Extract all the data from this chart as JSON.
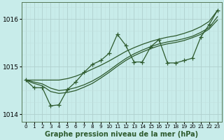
{
  "x": [
    0,
    1,
    2,
    3,
    4,
    5,
    6,
    7,
    8,
    9,
    10,
    11,
    12,
    13,
    14,
    15,
    16,
    17,
    18,
    19,
    20,
    21,
    22,
    23
  ],
  "y_jagged": [
    1014.72,
    1014.56,
    1014.56,
    1014.18,
    1014.2,
    1014.52,
    1014.68,
    1014.88,
    1015.05,
    1015.13,
    1015.28,
    1015.68,
    1015.45,
    1015.1,
    1015.1,
    1015.42,
    1015.57,
    1015.08,
    1015.08,
    1015.13,
    1015.18,
    1015.62,
    1015.88,
    1016.18
  ],
  "y_trend_high": [
    1014.72,
    1014.72,
    1014.72,
    1014.72,
    1014.72,
    1014.75,
    1014.8,
    1014.87,
    1014.95,
    1015.03,
    1015.12,
    1015.22,
    1015.32,
    1015.4,
    1015.47,
    1015.53,
    1015.58,
    1015.62,
    1015.65,
    1015.7,
    1015.76,
    1015.84,
    1015.95,
    1016.18
  ],
  "y_trend_mid": [
    1014.72,
    1014.68,
    1014.64,
    1014.55,
    1014.5,
    1014.52,
    1014.56,
    1014.62,
    1014.7,
    1014.8,
    1014.92,
    1015.05,
    1015.17,
    1015.27,
    1015.35,
    1015.42,
    1015.48,
    1015.52,
    1015.55,
    1015.59,
    1015.64,
    1015.72,
    1015.82,
    1016.05
  ],
  "y_trend_low": [
    1014.72,
    1014.65,
    1014.6,
    1014.48,
    1014.44,
    1014.46,
    1014.5,
    1014.57,
    1014.65,
    1014.76,
    1014.88,
    1015.01,
    1015.13,
    1015.23,
    1015.31,
    1015.38,
    1015.44,
    1015.48,
    1015.51,
    1015.55,
    1015.61,
    1015.68,
    1015.79,
    1015.98
  ],
  "bg_color": "#c8ecea",
  "grid_major_color": "#b0d0ce",
  "grid_minor_color": "#c0e0de",
  "line_color": "#2d5a2d",
  "ylim": [
    1013.85,
    1016.35
  ],
  "yticks": [
    1014.0,
    1015.0,
    1016.0
  ],
  "ylabel_fontsize": 6.5,
  "xlabel": "Graphe pression niveau de la mer (hPa)",
  "xlabel_fontsize": 7.0,
  "xtick_fontsize": 5.2,
  "ytick_fontsize": 6.5,
  "figsize": [
    3.2,
    2.0
  ],
  "dpi": 100
}
